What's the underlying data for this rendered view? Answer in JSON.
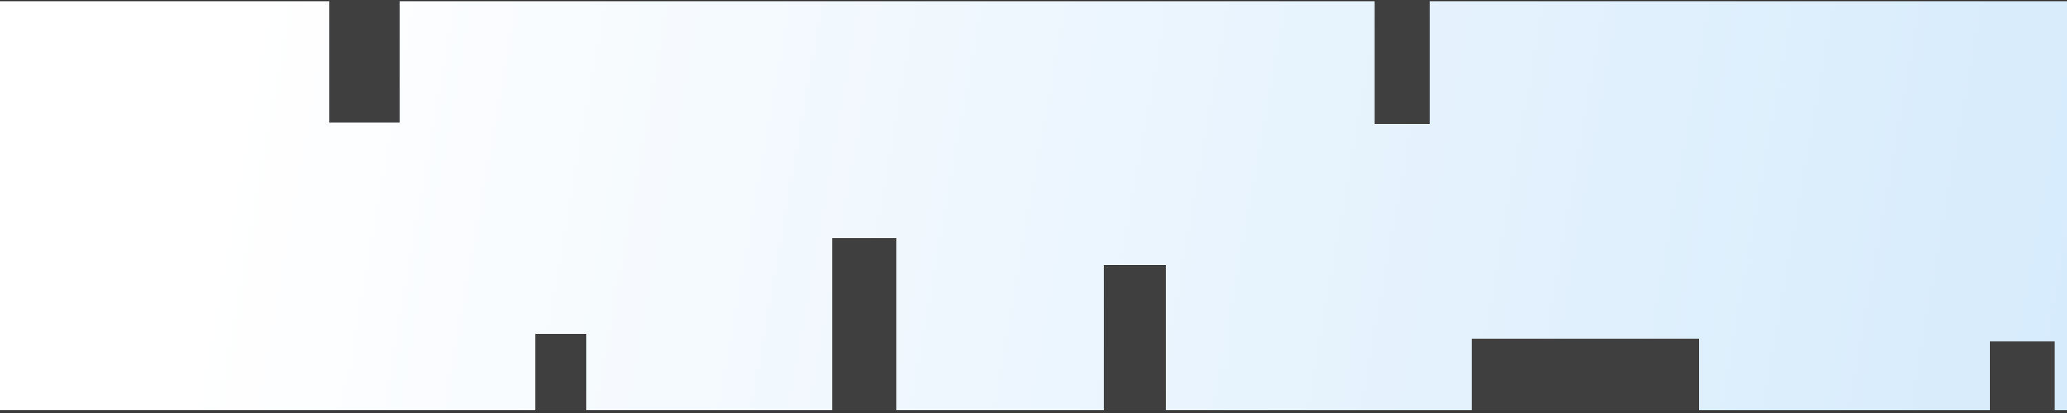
{
  "scene": {
    "background_gradient": {
      "from": "#ffffff",
      "to": "#d6ebfc"
    },
    "obstacle_color": "#3f3f3f",
    "line_color": "#3a3a3a"
  }
}
